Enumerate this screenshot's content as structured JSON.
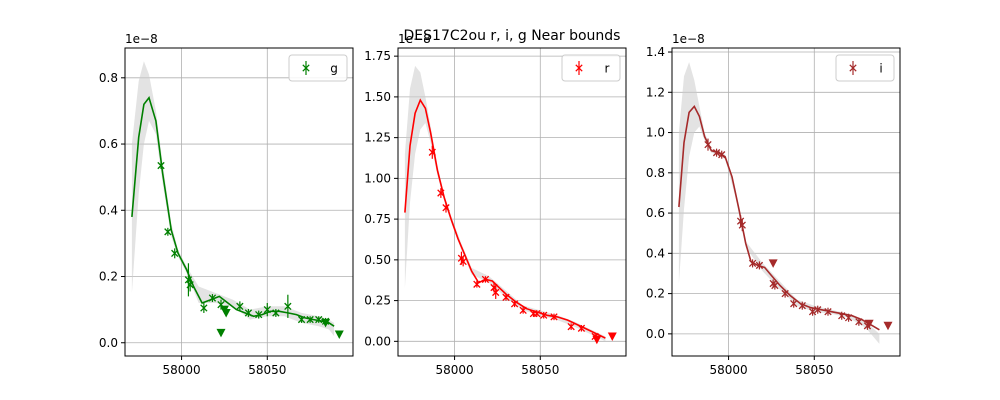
{
  "figure": {
    "title": "DES17C2ou  r, i, g Near bounds"
  },
  "chart_data": [
    {
      "type": "scatter",
      "band": "g",
      "color": "#008000",
      "legend": {
        "label": "g",
        "location": "upper right"
      },
      "scale_label": "1e−8",
      "xlim": [
        57967,
        58100
      ],
      "ylim": [
        -0.04,
        0.89
      ],
      "xticks": [
        58000,
        58050
      ],
      "yticks": [
        0.0,
        0.2,
        0.4,
        0.6,
        0.8
      ],
      "yticklabels": [
        "0.0",
        "0.2",
        "0.4",
        "0.6",
        "0.8"
      ],
      "grid": true,
      "fit_curve": {
        "x": [
          57971,
          57975,
          57978,
          57981,
          57985,
          57989,
          57994,
          57998,
          58003,
          58007,
          58012,
          58017,
          58022,
          58027,
          58032,
          58037,
          58042,
          58047,
          58052,
          58057,
          58062,
          58067,
          58072,
          58077,
          58082,
          58086,
          58089
        ],
        "y": [
          0.38,
          0.62,
          0.72,
          0.74,
          0.67,
          0.51,
          0.34,
          0.27,
          0.22,
          0.17,
          0.12,
          0.13,
          0.14,
          0.12,
          0.1,
          0.09,
          0.08,
          0.085,
          0.095,
          0.095,
          0.09,
          0.085,
          0.075,
          0.07,
          0.065,
          0.06,
          0.05
        ]
      },
      "band_upper": {
        "x": [
          57971,
          57975,
          57978,
          57981,
          57985,
          57989,
          57994,
          57998,
          58003,
          58010,
          58020,
          58030,
          58040,
          58050,
          58060,
          58070,
          58080,
          58086,
          58089
        ],
        "y": [
          0.6,
          0.79,
          0.85,
          0.81,
          0.7,
          0.54,
          0.36,
          0.28,
          0.23,
          0.17,
          0.15,
          0.13,
          0.1,
          0.11,
          0.11,
          0.09,
          0.08,
          0.07,
          0.06
        ]
      },
      "band_lower": {
        "x": [
          57971,
          57975,
          57978,
          57981,
          57985,
          57989,
          57994,
          57998,
          58003,
          58010,
          58020,
          58030,
          58040,
          58050,
          58060,
          58070,
          58080,
          58086,
          58089
        ],
        "y": [
          0.15,
          0.45,
          0.6,
          0.67,
          0.63,
          0.48,
          0.32,
          0.26,
          0.21,
          0.12,
          0.12,
          0.11,
          0.07,
          0.08,
          0.08,
          0.06,
          0.05,
          0.04,
          0.02
        ]
      },
      "points": [
        {
          "x": 57988,
          "y": 0.535,
          "err": 0.01
        },
        {
          "x": 57992,
          "y": 0.335,
          "err": 0.012
        },
        {
          "x": 57996,
          "y": 0.27,
          "err": 0.015
        },
        {
          "x": 58004,
          "y": 0.19,
          "err": 0.05
        },
        {
          "x": 58005,
          "y": 0.175,
          "err": 0.02
        },
        {
          "x": 58013,
          "y": 0.105,
          "err": 0.015
        },
        {
          "x": 58018,
          "y": 0.135,
          "err": 0.012
        },
        {
          "x": 58023,
          "y": 0.115,
          "err": 0.015
        },
        {
          "x": 58034,
          "y": 0.11,
          "err": 0.015
        },
        {
          "x": 58039,
          "y": 0.09,
          "err": 0.012
        },
        {
          "x": 58045,
          "y": 0.085,
          "err": 0.012
        },
        {
          "x": 58050,
          "y": 0.1,
          "err": 0.02
        },
        {
          "x": 58055,
          "y": 0.09,
          "err": 0.012
        },
        {
          "x": 58062,
          "y": 0.11,
          "err": 0.035
        },
        {
          "x": 58070,
          "y": 0.07,
          "err": 0.01
        },
        {
          "x": 58075,
          "y": 0.07,
          "err": 0.01
        },
        {
          "x": 58080,
          "y": 0.07,
          "err": 0.01
        },
        {
          "x": 58084,
          "y": 0.065,
          "err": 0.01
        }
      ],
      "upper_limits": [
        {
          "x": 58023,
          "y": 0.03
        },
        {
          "x": 58025,
          "y": 0.1
        },
        {
          "x": 58026,
          "y": 0.09
        },
        {
          "x": 58084,
          "y": 0.06
        },
        {
          "x": 58092,
          "y": 0.025
        }
      ]
    },
    {
      "type": "scatter",
      "band": "r",
      "color": "#ff0000",
      "legend": {
        "label": "r",
        "location": "upper right"
      },
      "scale_label": "1e−8",
      "xlim": [
        57967,
        58100
      ],
      "ylim": [
        -0.09,
        1.8
      ],
      "xticks": [
        58000,
        58050
      ],
      "yticks": [
        0.0,
        0.25,
        0.5,
        0.75,
        1.0,
        1.25,
        1.5,
        1.75
      ],
      "yticklabels": [
        "0.00",
        "0.25",
        "0.50",
        "0.75",
        "1.00",
        "1.25",
        "1.50",
        "1.75"
      ],
      "grid": true,
      "fit_curve": {
        "x": [
          57971,
          57974,
          57977,
          57980,
          57983,
          57986,
          57990,
          57994,
          57998,
          58002,
          58006,
          58010,
          58014,
          58018,
          58022,
          58026,
          58030,
          58036,
          58042,
          58048,
          58054,
          58060,
          58066,
          58072,
          58078,
          58084,
          58088
        ],
        "y": [
          0.79,
          1.2,
          1.4,
          1.48,
          1.43,
          1.28,
          1.05,
          0.88,
          0.75,
          0.63,
          0.53,
          0.43,
          0.36,
          0.38,
          0.37,
          0.33,
          0.29,
          0.24,
          0.2,
          0.18,
          0.16,
          0.15,
          0.13,
          0.1,
          0.07,
          0.04,
          0.02
        ]
      },
      "band_upper": {
        "x": [
          57971,
          57974,
          57977,
          57980,
          57983,
          57986,
          57990,
          57994,
          57998,
          58004,
          58010,
          58020,
          58030,
          58040,
          58050,
          58060,
          58070,
          58080,
          58088
        ],
        "y": [
          1.15,
          1.55,
          1.69,
          1.65,
          1.5,
          1.32,
          1.08,
          0.9,
          0.77,
          0.6,
          0.45,
          0.4,
          0.31,
          0.22,
          0.19,
          0.16,
          0.12,
          0.07,
          0.03
        ]
      },
      "band_lower": {
        "x": [
          57971,
          57974,
          57977,
          57980,
          57983,
          57986,
          57990,
          57994,
          57998,
          58004,
          58010,
          58020,
          58030,
          58040,
          58050,
          58060,
          58070,
          58080,
          58088
        ],
        "y": [
          0.33,
          0.85,
          1.15,
          1.3,
          1.34,
          1.22,
          1.02,
          0.86,
          0.73,
          0.56,
          0.41,
          0.36,
          0.27,
          0.19,
          0.16,
          0.13,
          0.09,
          0.04,
          0.0
        ]
      },
      "points": [
        {
          "x": 57987,
          "y": 1.16,
          "err": 0.04
        },
        {
          "x": 57992,
          "y": 0.91,
          "err": 0.03
        },
        {
          "x": 57995,
          "y": 0.82,
          "err": 0.03
        },
        {
          "x": 58004,
          "y": 0.51,
          "err": 0.04
        },
        {
          "x": 58005,
          "y": 0.49,
          "err": 0.03
        },
        {
          "x": 58013,
          "y": 0.35,
          "err": 0.02
        },
        {
          "x": 58018,
          "y": 0.38,
          "err": 0.02
        },
        {
          "x": 58023,
          "y": 0.33,
          "err": 0.03
        },
        {
          "x": 58024,
          "y": 0.3,
          "err": 0.04
        },
        {
          "x": 58030,
          "y": 0.27,
          "err": 0.02
        },
        {
          "x": 58035,
          "y": 0.23,
          "err": 0.02
        },
        {
          "x": 58040,
          "y": 0.19,
          "err": 0.02
        },
        {
          "x": 58046,
          "y": 0.17,
          "err": 0.02
        },
        {
          "x": 58048,
          "y": 0.17,
          "err": 0.02
        },
        {
          "x": 58052,
          "y": 0.16,
          "err": 0.02
        },
        {
          "x": 58058,
          "y": 0.15,
          "err": 0.02
        },
        {
          "x": 58068,
          "y": 0.09,
          "err": 0.02
        },
        {
          "x": 58074,
          "y": 0.08,
          "err": 0.02
        },
        {
          "x": 58082,
          "y": 0.03,
          "err": 0.02
        }
      ],
      "upper_limits": [
        {
          "x": 58083,
          "y": 0.01
        },
        {
          "x": 58092,
          "y": 0.03
        }
      ]
    },
    {
      "type": "scatter",
      "band": "i",
      "color": "#a52a2a",
      "legend": {
        "label": "i",
        "location": "upper right"
      },
      "scale_label": "1e−8",
      "xlim": [
        57967,
        58100
      ],
      "ylim": [
        -0.11,
        1.42
      ],
      "xticks": [
        58000,
        58050
      ],
      "yticks": [
        0.0,
        0.2,
        0.4,
        0.6,
        0.8,
        1.0,
        1.2,
        1.4
      ],
      "yticklabels": [
        "0.0",
        "0.2",
        "0.4",
        "0.6",
        "0.8",
        "1.0",
        "1.2",
        "1.4"
      ],
      "grid": true,
      "fit_curve": {
        "x": [
          57971,
          57974,
          57977,
          57980,
          57983,
          57986,
          57990,
          57994,
          57998,
          58002,
          58006,
          58010,
          58013,
          58017,
          58021,
          58025,
          58030,
          58036,
          58042,
          58048,
          58054,
          58060,
          58066,
          58072,
          58078,
          58084,
          58088
        ],
        "y": [
          0.63,
          0.95,
          1.1,
          1.13,
          1.08,
          0.98,
          0.91,
          0.9,
          0.88,
          0.78,
          0.62,
          0.45,
          0.36,
          0.34,
          0.33,
          0.29,
          0.24,
          0.19,
          0.15,
          0.13,
          0.12,
          0.11,
          0.1,
          0.09,
          0.07,
          0.04,
          0.02
        ]
      },
      "band_upper": {
        "x": [
          57971,
          57974,
          57977,
          57980,
          57983,
          57986,
          57990,
          57994,
          57998,
          58004,
          58010,
          58020,
          58030,
          58040,
          58050,
          58060,
          58070,
          58080,
          58088
        ],
        "y": [
          1.0,
          1.28,
          1.35,
          1.26,
          1.13,
          1.0,
          0.92,
          0.91,
          0.89,
          0.72,
          0.46,
          0.35,
          0.26,
          0.17,
          0.14,
          0.12,
          0.1,
          0.06,
          0.0
        ]
      },
      "band_lower": {
        "x": [
          57971,
          57974,
          57977,
          57980,
          57983,
          57986,
          57990,
          57994,
          57998,
          58004,
          58010,
          58020,
          58030,
          58040,
          58050,
          58060,
          58070,
          58080,
          58088
        ],
        "y": [
          0.25,
          0.62,
          0.88,
          1.0,
          1.03,
          0.96,
          0.9,
          0.89,
          0.87,
          0.68,
          0.43,
          0.31,
          0.22,
          0.14,
          0.11,
          0.1,
          0.08,
          0.03,
          -0.05
        ]
      },
      "points": [
        {
          "x": 57988,
          "y": 0.94,
          "err": 0.03
        },
        {
          "x": 57993,
          "y": 0.9,
          "err": 0.02
        },
        {
          "x": 57996,
          "y": 0.89,
          "err": 0.02
        },
        {
          "x": 58007,
          "y": 0.56,
          "err": 0.03
        },
        {
          "x": 58008,
          "y": 0.54,
          "err": 0.03
        },
        {
          "x": 58014,
          "y": 0.35,
          "err": 0.02
        },
        {
          "x": 58018,
          "y": 0.34,
          "err": 0.02
        },
        {
          "x": 58026,
          "y": 0.25,
          "err": 0.02
        },
        {
          "x": 58027,
          "y": 0.24,
          "err": 0.02
        },
        {
          "x": 58033,
          "y": 0.2,
          "err": 0.02
        },
        {
          "x": 58038,
          "y": 0.15,
          "err": 0.02
        },
        {
          "x": 58043,
          "y": 0.14,
          "err": 0.02
        },
        {
          "x": 58049,
          "y": 0.11,
          "err": 0.02
        },
        {
          "x": 58052,
          "y": 0.12,
          "err": 0.02
        },
        {
          "x": 58058,
          "y": 0.11,
          "err": 0.02
        },
        {
          "x": 58066,
          "y": 0.09,
          "err": 0.02
        },
        {
          "x": 58070,
          "y": 0.08,
          "err": 0.02
        },
        {
          "x": 58076,
          "y": 0.06,
          "err": 0.02
        },
        {
          "x": 58081,
          "y": 0.04,
          "err": 0.02
        }
      ],
      "upper_limits": [
        {
          "x": 58026,
          "y": 0.35
        },
        {
          "x": 58082,
          "y": 0.05
        },
        {
          "x": 58093,
          "y": 0.04
        }
      ]
    }
  ]
}
